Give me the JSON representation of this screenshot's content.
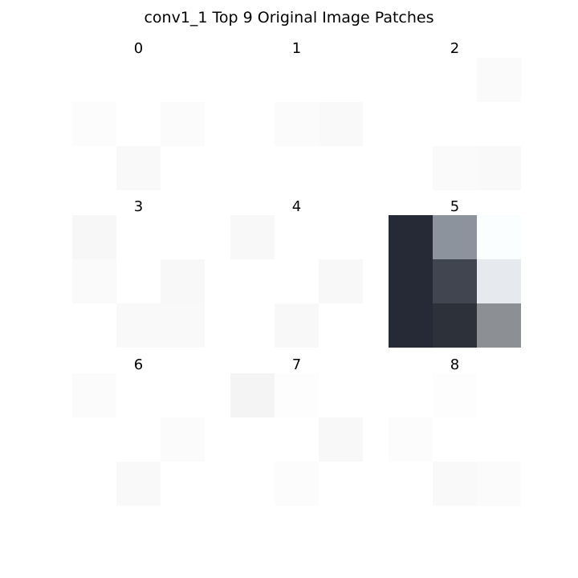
{
  "title": "conv1_1 Top 9 Original Image Patches",
  "patches": [
    {
      "label": "0",
      "pixels": [
        [
          "#ffffff",
          "#ffffff",
          "#ffffff"
        ],
        [
          "#fcfcfc",
          "#ffffff",
          "#fbfbfb"
        ],
        [
          "#ffffff",
          "#f9f9f9",
          "#ffffff"
        ]
      ]
    },
    {
      "label": "1",
      "pixels": [
        [
          "#ffffff",
          "#ffffff",
          "#ffffff"
        ],
        [
          "#ffffff",
          "#fbfbfb",
          "#f9f9f9"
        ],
        [
          "#ffffff",
          "#ffffff",
          "#ffffff"
        ]
      ]
    },
    {
      "label": "2",
      "pixels": [
        [
          "#ffffff",
          "#ffffff",
          "#fafafa"
        ],
        [
          "#ffffff",
          "#ffffff",
          "#ffffff"
        ],
        [
          "#ffffff",
          "#fafafa",
          "#f9f9f9"
        ]
      ]
    },
    {
      "label": "3",
      "pixels": [
        [
          "#f7f7f7",
          "#ffffff",
          "#ffffff"
        ],
        [
          "#fafafa",
          "#ffffff",
          "#f8f8f8"
        ],
        [
          "#ffffff",
          "#f9f9f9",
          "#f9f9f9"
        ]
      ]
    },
    {
      "label": "4",
      "pixels": [
        [
          "#f8f8f8",
          "#ffffff",
          "#ffffff"
        ],
        [
          "#ffffff",
          "#ffffff",
          "#f8f8f8"
        ],
        [
          "#ffffff",
          "#f8f8f8",
          "#ffffff"
        ]
      ]
    },
    {
      "label": "5",
      "pixels": [
        [
          "#252a36",
          "#8d939c",
          "#fbfeff"
        ],
        [
          "#252a36",
          "#414550",
          "#e6e9ed"
        ],
        [
          "#252a36",
          "#2d313a",
          "#8c8f94"
        ]
      ]
    },
    {
      "label": "6",
      "pixels": [
        [
          "#fbfbfb",
          "#ffffff",
          "#ffffff"
        ],
        [
          "#ffffff",
          "#ffffff",
          "#fbfbfb"
        ],
        [
          "#ffffff",
          "#f9f9f9",
          "#ffffff"
        ]
      ]
    },
    {
      "label": "7",
      "pixels": [
        [
          "#f4f4f4",
          "#fdfdfd",
          "#ffffff"
        ],
        [
          "#ffffff",
          "#ffffff",
          "#f8f8f8"
        ],
        [
          "#ffffff",
          "#fcfcfc",
          "#ffffff"
        ]
      ]
    },
    {
      "label": "8",
      "pixels": [
        [
          "#ffffff",
          "#fdfdfd",
          "#ffffff"
        ],
        [
          "#fcfcfc",
          "#ffffff",
          "#ffffff"
        ],
        [
          "#ffffff",
          "#f9f9f9",
          "#fbfbfb"
        ]
      ]
    }
  ]
}
